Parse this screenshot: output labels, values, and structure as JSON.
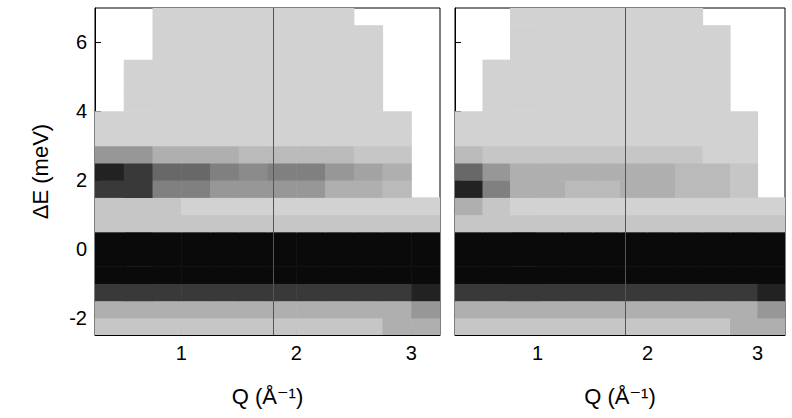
{
  "chart_data": [
    {
      "type": "heatmap",
      "x_label": "Q (Å⁻¹)",
      "y_label": "ΔE (meV)",
      "xlim": [
        0.25,
        3.25
      ],
      "ylim": [
        -2.5,
        7
      ],
      "xticks": [
        1,
        2,
        3
      ],
      "yticks": [
        -2,
        0,
        2,
        4,
        6
      ],
      "tick_labels": true,
      "grid": false,
      "vertical_line_x": 1.8,
      "zlim": [
        0,
        10
      ],
      "x": [
        0.375,
        0.625,
        0.875,
        1.125,
        1.375,
        1.625,
        1.875,
        2.125,
        2.375,
        2.625,
        2.875,
        3.125
      ],
      "y": [
        -2.25,
        -1.75,
        -1.25,
        -0.75,
        -0.25,
        0.25,
        0.75,
        1.25,
        1.75,
        2.25,
        2.75,
        3.25,
        3.75,
        4.25,
        4.75,
        5.25,
        5.75,
        6.25,
        6.75
      ],
      "z": [
        [
          2,
          2,
          2,
          2,
          2,
          2,
          2,
          2,
          2,
          2,
          3,
          3
        ],
        [
          3,
          3,
          3,
          3,
          3,
          3,
          3,
          3,
          3,
          3,
          3,
          4
        ],
        [
          8,
          8,
          8,
          8,
          8,
          8,
          8,
          8,
          8,
          8,
          8,
          9
        ],
        [
          10,
          10,
          10,
          10,
          10,
          10,
          10,
          10,
          10,
          10,
          10,
          10
        ],
        [
          10,
          10,
          10,
          10,
          10,
          10,
          10,
          10,
          10,
          10,
          10,
          10
        ],
        [
          10,
          10,
          10,
          10,
          10,
          10,
          10,
          10,
          10,
          10,
          10,
          10
        ],
        [
          2,
          2,
          2,
          2,
          2,
          2,
          2,
          2,
          2,
          2,
          2,
          2
        ],
        [
          2,
          2,
          2,
          1.5,
          1.5,
          1.5,
          1.5,
          1.5,
          1.5,
          1.5,
          1.5,
          1.5
        ],
        [
          8,
          8,
          5,
          5,
          4,
          4,
          4,
          4,
          3,
          3,
          2.5,
          null
        ],
        [
          9,
          8,
          6,
          6,
          5,
          4.5,
          5,
          5,
          4,
          3.5,
          3,
          null
        ],
        [
          4,
          4,
          3,
          3,
          3,
          2.5,
          2.5,
          2.5,
          2.5,
          2,
          2,
          null
        ],
        [
          1.5,
          1.5,
          1.5,
          1.5,
          1.5,
          1.5,
          1.5,
          1.5,
          1.5,
          1.5,
          1.5,
          null
        ],
        [
          1.5,
          1.5,
          1.5,
          1.5,
          1.5,
          1.5,
          1.5,
          1.5,
          1.5,
          1.5,
          1.5,
          null
        ],
        [
          null,
          1.5,
          1.5,
          1.5,
          1.5,
          1.5,
          1.5,
          1.5,
          1.5,
          1.5,
          null,
          null
        ],
        [
          null,
          1.5,
          1.5,
          1.5,
          1.5,
          1.5,
          1.5,
          1.5,
          1.5,
          1.5,
          null,
          null
        ],
        [
          null,
          1.5,
          1.5,
          1.5,
          1.5,
          1.5,
          1.5,
          1.5,
          1.5,
          1.5,
          null,
          null
        ],
        [
          null,
          null,
          1.5,
          1.5,
          1.5,
          1.5,
          1.5,
          1.5,
          1.5,
          1.5,
          null,
          null
        ],
        [
          null,
          null,
          1.5,
          1.5,
          1.5,
          1.5,
          1.5,
          1.5,
          1.5,
          1.5,
          null,
          null
        ],
        [
          null,
          null,
          1.5,
          1.5,
          1.5,
          1.5,
          1.5,
          1.5,
          1.5,
          null,
          null,
          null
        ]
      ]
    },
    {
      "type": "heatmap",
      "x_label": "Q (Å⁻¹)",
      "xlim": [
        0.25,
        3.25
      ],
      "ylim": [
        -2.5,
        7
      ],
      "xticks": [
        1,
        2,
        3
      ],
      "yticks": [
        -2,
        0,
        2,
        4,
        6
      ],
      "tick_labels": "x",
      "grid": false,
      "vertical_line_x": 1.8,
      "zlim": [
        0,
        10
      ],
      "x": [
        0.375,
        0.625,
        0.875,
        1.125,
        1.375,
        1.625,
        1.875,
        2.125,
        2.375,
        2.625,
        2.875,
        3.125
      ],
      "y": [
        -2.25,
        -1.75,
        -1.25,
        -0.75,
        -0.25,
        0.25,
        0.75,
        1.25,
        1.75,
        2.25,
        2.75,
        3.25,
        3.75,
        4.25,
        4.75,
        5.25,
        5.75,
        6.25,
        6.75
      ],
      "z": [
        [
          2,
          2,
          2,
          2,
          2,
          2,
          2,
          2,
          2,
          2,
          3,
          3
        ],
        [
          3,
          3,
          3,
          3,
          3,
          3,
          3,
          3,
          3,
          3,
          3,
          4
        ],
        [
          8,
          8,
          8,
          8,
          8,
          8,
          8,
          8,
          8,
          8,
          8,
          9
        ],
        [
          10,
          10,
          10,
          10,
          10,
          10,
          10,
          10,
          10,
          10,
          10,
          10
        ],
        [
          10,
          10,
          10,
          10,
          10,
          10,
          10,
          10,
          10,
          10,
          10,
          10
        ],
        [
          10,
          10,
          10,
          10,
          10,
          10,
          10,
          10,
          10,
          10,
          10,
          10
        ],
        [
          2,
          2,
          2,
          2,
          2,
          2,
          2,
          2,
          2,
          2,
          2,
          2
        ],
        [
          3,
          2,
          1.5,
          1.5,
          1.5,
          1.5,
          1.5,
          1.5,
          1.5,
          1.5,
          1.5,
          1.5
        ],
        [
          9,
          5,
          3,
          3,
          2.5,
          2.5,
          3,
          3,
          2.5,
          2.5,
          2,
          null
        ],
        [
          6,
          4,
          3,
          3,
          3,
          3,
          3,
          3,
          2.5,
          2.5,
          2,
          null
        ],
        [
          2.5,
          2,
          2,
          2,
          2,
          2,
          2,
          2,
          2,
          1.5,
          1.5,
          null
        ],
        [
          1.5,
          1.5,
          1.5,
          1.5,
          1.5,
          1.5,
          1.5,
          1.5,
          1.5,
          1.5,
          1.5,
          null
        ],
        [
          1.5,
          1.5,
          1.5,
          1.5,
          1.5,
          1.5,
          1.5,
          1.5,
          1.5,
          1.5,
          1.5,
          null
        ],
        [
          null,
          1.5,
          1.5,
          1.5,
          1.5,
          1.5,
          1.5,
          1.5,
          1.5,
          1.5,
          null,
          null
        ],
        [
          null,
          1.5,
          1.5,
          1.5,
          1.5,
          1.5,
          1.5,
          1.5,
          1.5,
          1.5,
          null,
          null
        ],
        [
          null,
          1.5,
          1.5,
          1.5,
          1.5,
          1.5,
          1.5,
          1.5,
          1.5,
          1.5,
          null,
          null
        ],
        [
          null,
          null,
          1.5,
          1.5,
          1.5,
          1.5,
          1.5,
          1.5,
          1.5,
          1.5,
          null,
          null
        ],
        [
          null,
          null,
          1.5,
          1.5,
          1.5,
          1.5,
          1.5,
          1.5,
          1.5,
          1.5,
          null,
          null
        ],
        [
          null,
          null,
          1.5,
          1.5,
          1.5,
          1.5,
          1.5,
          1.5,
          1.5,
          null,
          null,
          null
        ]
      ]
    }
  ]
}
